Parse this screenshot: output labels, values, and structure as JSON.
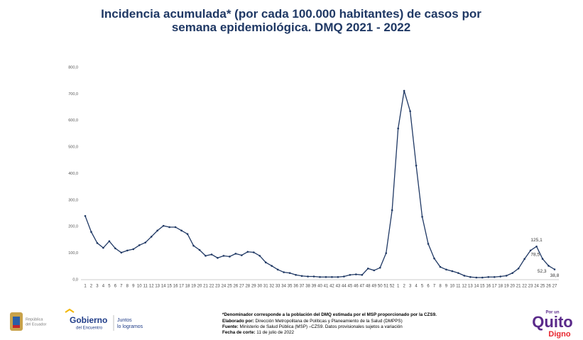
{
  "chart_data": {
    "type": "line",
    "title": "Incidencia acumulada* (por cada 100.000 habitantes) de casos por semana epidemiológica. DMQ 2021 - 2022",
    "categories": [
      "1",
      "2",
      "3",
      "4",
      "5",
      "6",
      "7",
      "8",
      "9",
      "10",
      "11",
      "12",
      "13",
      "14",
      "15",
      "16",
      "17",
      "18",
      "19",
      "20",
      "21",
      "22",
      "23",
      "24",
      "25",
      "26",
      "27",
      "28",
      "29",
      "30",
      "31",
      "32",
      "33",
      "34",
      "35",
      "36",
      "37",
      "38",
      "39",
      "40",
      "41",
      "42",
      "43",
      "44",
      "45",
      "46",
      "47",
      "48",
      "49",
      "50",
      "51",
      "52",
      "1",
      "2",
      "3",
      "4",
      "5",
      "6",
      "7",
      "8",
      "9",
      "10",
      "11",
      "12",
      "13",
      "14",
      "15",
      "16",
      "17",
      "18",
      "19",
      "20",
      "21",
      "22",
      "23",
      "24",
      "25",
      "26",
      "27"
    ],
    "series": [
      {
        "color": "#1f3864",
        "values": [
          240,
          180,
          138,
          120,
          145,
          118,
          102,
          110,
          115,
          130,
          140,
          162,
          185,
          203,
          198,
          198,
          185,
          172,
          128,
          112,
          90,
          95,
          82,
          90,
          87,
          98,
          92,
          105,
          103,
          90,
          65,
          52,
          38,
          28,
          25,
          18,
          14,
          12,
          12,
          10,
          10,
          10,
          10,
          12,
          18,
          20,
          18,
          42,
          35,
          45,
          100,
          262,
          570,
          712,
          635,
          430,
          237,
          135,
          80,
          48,
          38,
          32,
          25,
          15,
          10,
          8,
          8,
          10,
          10,
          12,
          15,
          25,
          42,
          78,
          110,
          125.1,
          78.5,
          52.3,
          38.8
        ],
        "value_labels": [
          null,
          null,
          null,
          null,
          null,
          null,
          null,
          null,
          null,
          null,
          null,
          null,
          null,
          null,
          null,
          null,
          null,
          null,
          null,
          null,
          null,
          null,
          null,
          null,
          null,
          null,
          null,
          null,
          null,
          null,
          null,
          null,
          null,
          null,
          null,
          null,
          null,
          null,
          null,
          null,
          null,
          null,
          null,
          null,
          null,
          null,
          null,
          null,
          null,
          null,
          null,
          null,
          null,
          null,
          null,
          null,
          null,
          null,
          null,
          null,
          null,
          null,
          null,
          null,
          null,
          null,
          null,
          null,
          null,
          null,
          null,
          null,
          null,
          null,
          null,
          "125,1",
          "78,5",
          "52,3",
          "38,8"
        ]
      }
    ],
    "ylim": [
      0,
      800
    ],
    "yticks": [
      {
        "value": 0,
        "label": "0,0"
      },
      {
        "value": 100,
        "label": "100,0"
      },
      {
        "value": 200,
        "label": "200,0"
      },
      {
        "value": 300,
        "label": "300,0"
      },
      {
        "value": 400,
        "label": "400,0"
      },
      {
        "value": 500,
        "label": "500,0"
      },
      {
        "value": 600,
        "label": "600,0"
      },
      {
        "value": 700,
        "label": "700,0"
      },
      {
        "value": 800,
        "label": "800,0"
      }
    ],
    "grid": false
  },
  "footer": {
    "logo_left": {
      "line1": "República",
      "line2": "del Ecuador"
    },
    "logo_gov": {
      "line1": "Gobierno",
      "line2": "del Encuentro",
      "slogan1": "Juntos",
      "slogan2": "lo logramos"
    },
    "notes": [
      {
        "label": "*Denominador corresponde a la población del DMQ estimada por el MSP proporcionado por la CZS9.",
        "text": null
      },
      {
        "label": "Elaborado por:",
        "text": "Dirección Metropolitana de Políticas y Planeamiento de la Salud (DMPPS)"
      },
      {
        "label": "Fuente:",
        "text": "Ministerio de Salud Pública (MSP) –CZS9. Datos provisionales sujetos a variación"
      },
      {
        "label": "Fecha de corte:",
        "text": "11 de julio de 2022"
      }
    ],
    "logo_right": {
      "top": "Por un",
      "main": "Quito",
      "bottom": "Digno"
    }
  }
}
